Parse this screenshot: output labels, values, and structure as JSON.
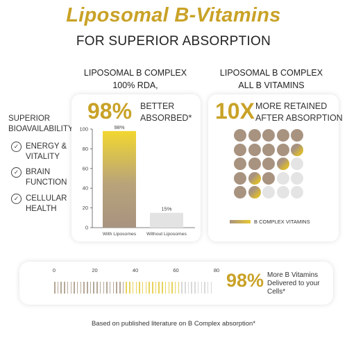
{
  "header": {
    "title": "Liposomal B-Vitamins",
    "subtitle": "FOR SUPERIOR ABSORPTION"
  },
  "left_column": {
    "heading_line1": "LIPOSOMAL B COMPLEX",
    "heading_line2": "100% RDA,"
  },
  "right_column": {
    "heading_line1": "LIPOSOMAL B COMPLEX",
    "heading_line2": "ALL B VITAMINS"
  },
  "sidebar": {
    "title_line1": "SUPERIOR",
    "title_line2": "BIOAVAILABILITY",
    "items": [
      {
        "line1": "ENERGY &",
        "line2": "VITALITY",
        "icon": "check-circle-icon"
      },
      {
        "line1": "BRAIN",
        "line2": "FUNCTION",
        "icon": "check-circle-icon"
      },
      {
        "line1": "CELLULAR",
        "line2": "HEALTH",
        "icon": "check-circle-icon"
      }
    ]
  },
  "card1": {
    "big_value": "98%",
    "label_line1": "BETTER",
    "label_line2": "ABSORBED*"
  },
  "chart_data": {
    "type": "bar",
    "categories": [
      "With Liposomes",
      "Without Liposomes"
    ],
    "values": [
      98,
      15
    ],
    "data_labels": [
      "98%",
      "15%"
    ],
    "ylim": [
      0,
      100
    ],
    "yticks": [
      "0",
      "20",
      "40",
      "60",
      "80",
      "100"
    ],
    "colors": {
      "with": "#a89380",
      "with_top": "#f2d730",
      "without": "#e3e3e3"
    }
  },
  "card2": {
    "big_value": "10X",
    "label_line1": "MORE RETAINED",
    "label_line2": "AFTER ABSORPTION",
    "legend_label": "B COMPLEX VITAMINS",
    "dot_grid": {
      "rows": 5,
      "cols": 5,
      "pattern": [
        "bbbbb",
        "bbbbg",
        "bbbgw",
        "bgbww",
        "bgwww"
      ],
      "colors": {
        "b": "#a89380",
        "g": "#d9b833",
        "w": "#e4e4e4"
      }
    }
  },
  "bottom_card": {
    "ruler_labels": [
      "0",
      "20",
      "40",
      "60",
      "80"
    ],
    "big_value": "98%",
    "text_line1": "More B Vitamins",
    "text_line2": "Delivered to your",
    "text_line3": "Cells*"
  },
  "footnote": "Based  on published literature on B Complex absorption*"
}
